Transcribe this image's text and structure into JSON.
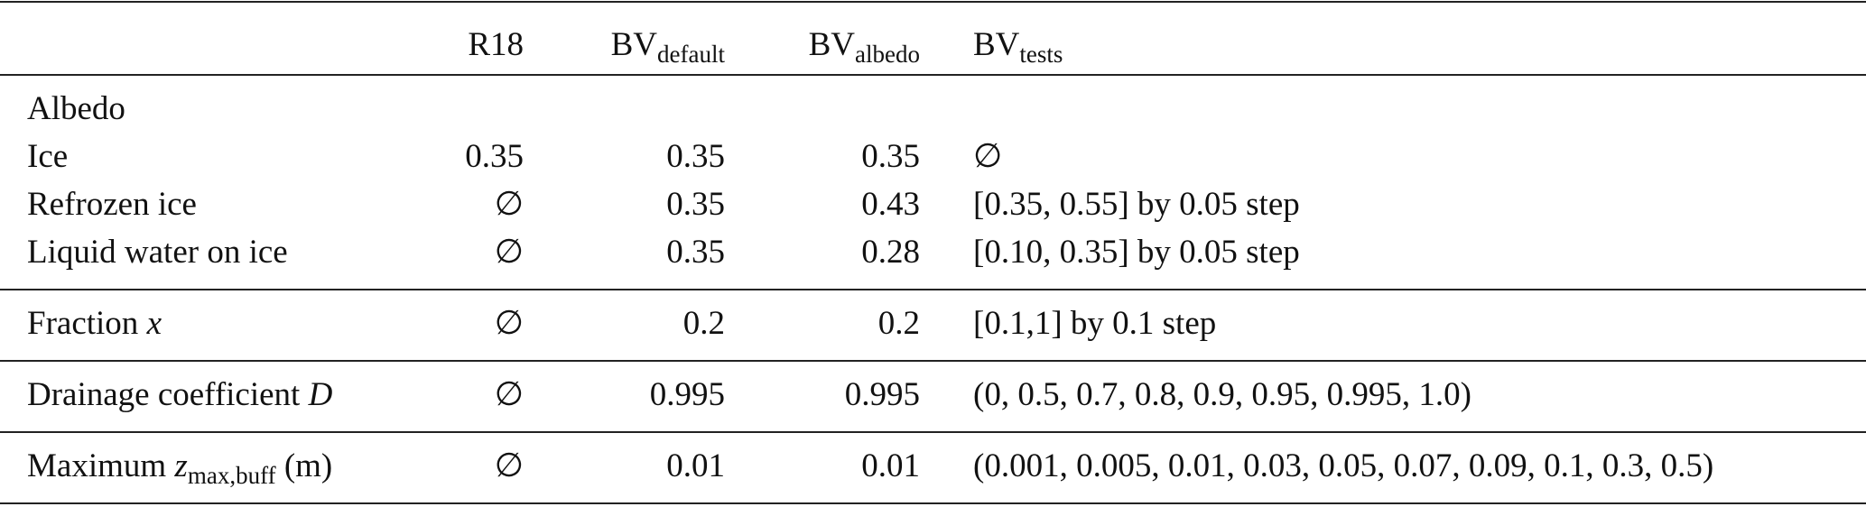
{
  "table": {
    "header": [
      [
        {
          "text": "R18"
        }
      ],
      [
        {
          "text": "BV"
        },
        {
          "text": "default",
          "style": "sub"
        }
      ],
      [
        {
          "text": "BV"
        },
        {
          "text": "albedo",
          "style": "sub"
        }
      ],
      [
        {
          "text": "BV"
        },
        {
          "text": "tests",
          "style": "sub"
        }
      ]
    ],
    "groups": [
      [
        {
          "label": [
            {
              "text": "Albedo"
            }
          ]
        },
        {
          "label": [
            {
              "text": "Ice"
            }
          ],
          "cells": [
            "0.35",
            "0.35",
            "0.35",
            "∅"
          ]
        },
        {
          "label": [
            {
              "text": "Refrozen ice"
            }
          ],
          "cells": [
            "∅",
            "0.35",
            "0.43",
            "[0.35, 0.55] by 0.05 step"
          ]
        },
        {
          "label": [
            {
              "text": "Liquid water on ice"
            }
          ],
          "cells": [
            "∅",
            "0.35",
            "0.28",
            "[0.10, 0.35] by 0.05 step"
          ]
        }
      ],
      [
        {
          "label": [
            {
              "text": "Fraction "
            },
            {
              "text": "x",
              "style": "italic"
            }
          ],
          "cells": [
            "∅",
            "0.2",
            "0.2",
            "[0.1,1] by 0.1 step"
          ]
        }
      ],
      [
        {
          "label": [
            {
              "text": "Drainage coefficient "
            },
            {
              "text": "D",
              "style": "italic"
            }
          ],
          "cells": [
            "∅",
            "0.995",
            "0.995",
            "(0, 0.5, 0.7, 0.8, 0.9, 0.95, 0.995, 1.0)"
          ]
        }
      ],
      [
        {
          "label": [
            {
              "text": "Maximum "
            },
            {
              "text": "z",
              "style": "italic"
            },
            {
              "text": "max,buff",
              "style": "sub"
            },
            {
              "text": " (m)"
            }
          ],
          "cells": [
            "∅",
            "0.01",
            "0.01",
            "(0.001, 0.005, 0.01, 0.03, 0.05, 0.07, 0.09, 0.1, 0.3, 0.5)"
          ]
        }
      ]
    ]
  }
}
